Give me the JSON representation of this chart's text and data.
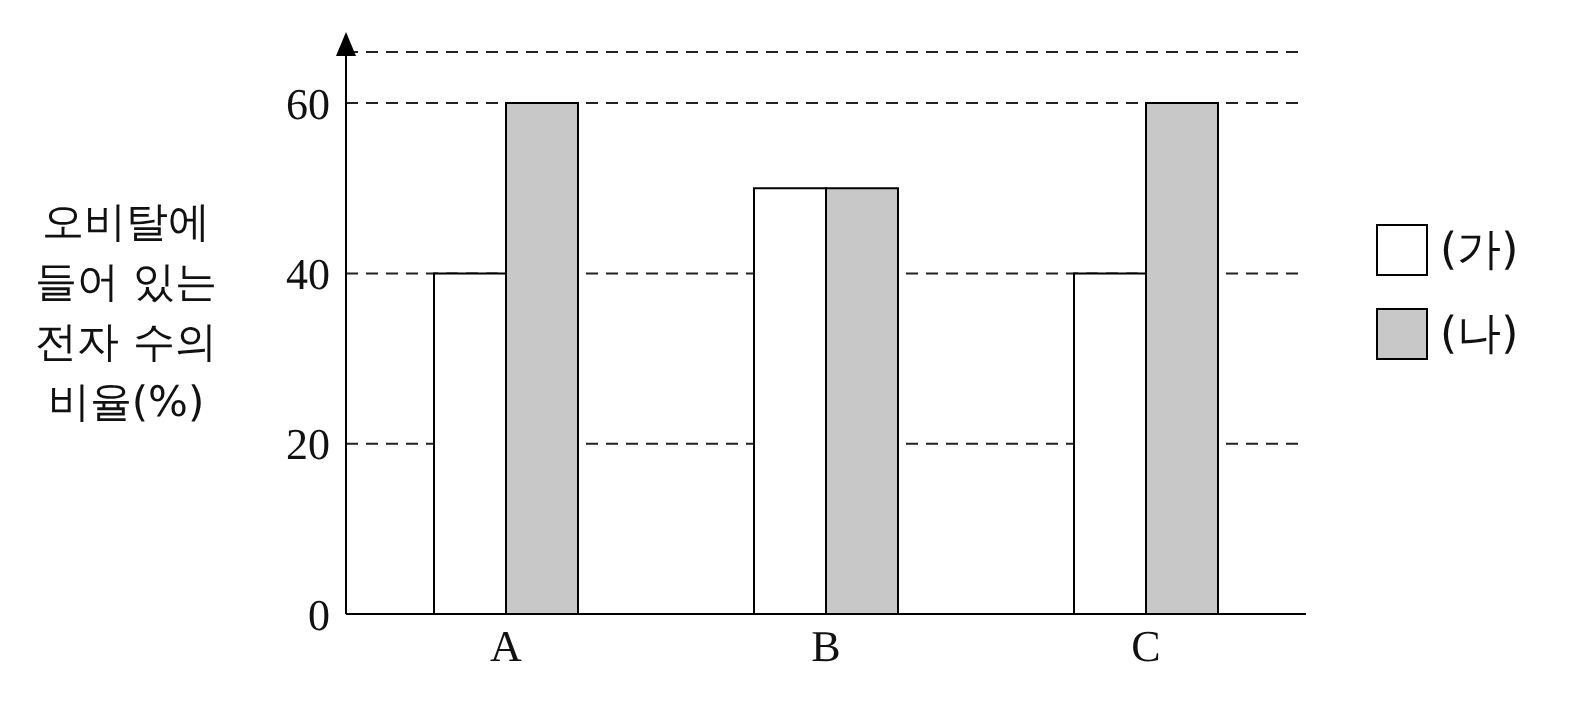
{
  "chart_data": {
    "type": "bar",
    "ylabel": "오비탈에 들어 있는 전자 수의 비율(%)",
    "categories": [
      "A",
      "B",
      "C"
    ],
    "series": [
      {
        "name": "(가)",
        "color": "#ffffff",
        "values": [
          40,
          50,
          40
        ]
      },
      {
        "name": "(나)",
        "color": "#c8c8c8",
        "values": [
          60,
          50,
          60
        ]
      }
    ],
    "ylim": [
      0,
      66
    ],
    "yticks": [
      0,
      20,
      40,
      60
    ],
    "grid": "y",
    "legend": "right"
  }
}
